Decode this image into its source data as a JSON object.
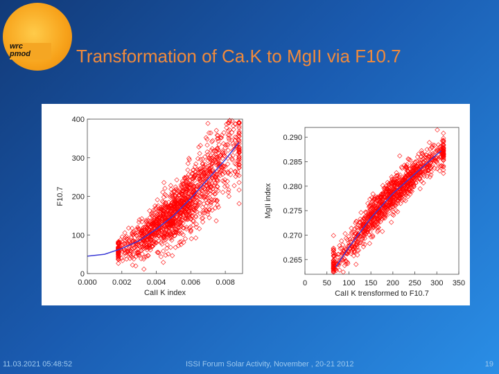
{
  "slide": {
    "title": "Transformation of Ca.K to MgII via F10.7",
    "logo_text_line1": "wrc",
    "logo_text_line2": "pmod",
    "footer_date": "11.03.2021 05:48:52",
    "footer_event": "ISSI Forum Solar Activity, November , 20-21 2012",
    "page_number": "19",
    "colors": {
      "title": "#f08a3c",
      "points": "#ff0000",
      "fit": "#3a3ad6",
      "background": "#1a5bb0"
    }
  },
  "chart_data": [
    {
      "type": "scatter",
      "title": "",
      "xlabel": "CaII K index",
      "ylabel": "F10.7",
      "xlim": [
        0.0,
        0.009
      ],
      "ylim": [
        0,
        400
      ],
      "xticks": [
        "0.000",
        "0.002",
        "0.004",
        "0.006",
        "0.008"
      ],
      "yticks": [
        "0",
        "100",
        "200",
        "300",
        "400"
      ],
      "xtick_values": [
        0.0,
        0.002,
        0.004,
        0.006,
        0.008
      ],
      "ytick_values": [
        0,
        100,
        200,
        300,
        400
      ],
      "scatter_cloud": {
        "x_range": [
          0.0018,
          0.0088
        ],
        "center_fit": "quadratic",
        "spread": 40,
        "count": 1400
      },
      "series": [
        {
          "name": "fit",
          "style": "line",
          "x": [
            0.0,
            0.001,
            0.002,
            0.003,
            0.004,
            0.005,
            0.006,
            0.007,
            0.008,
            0.0088
          ],
          "y": [
            45,
            50,
            65,
            85,
            115,
            150,
            195,
            245,
            295,
            340
          ]
        }
      ]
    },
    {
      "type": "scatter",
      "title": "",
      "xlabel": "CaII K trensformed to F10.7",
      "ylabel": "MgII index",
      "xlim": [
        0,
        350
      ],
      "ylim": [
        0.262,
        0.292
      ],
      "xticks": [
        "0",
        "50",
        "100",
        "150",
        "200",
        "250",
        "300",
        "350"
      ],
      "yticks": [
        "0.265",
        "0.270",
        "0.275",
        "0.280",
        "0.285",
        "0.290"
      ],
      "xtick_values": [
        0,
        50,
        100,
        150,
        200,
        250,
        300,
        350
      ],
      "ytick_values": [
        0.265,
        0.27,
        0.275,
        0.28,
        0.285,
        0.29
      ],
      "scatter_cloud": {
        "x_range": [
          65,
          315
        ],
        "center_fit": "linear-curved",
        "spread": 0.0018,
        "count": 1100
      },
      "series": [
        {
          "name": "fit",
          "style": "line",
          "x": [
            70,
            100,
            150,
            200,
            250,
            300,
            310
          ],
          "y": [
            0.2635,
            0.2675,
            0.2735,
            0.2785,
            0.2825,
            0.2865,
            0.2872
          ]
        }
      ]
    }
  ]
}
